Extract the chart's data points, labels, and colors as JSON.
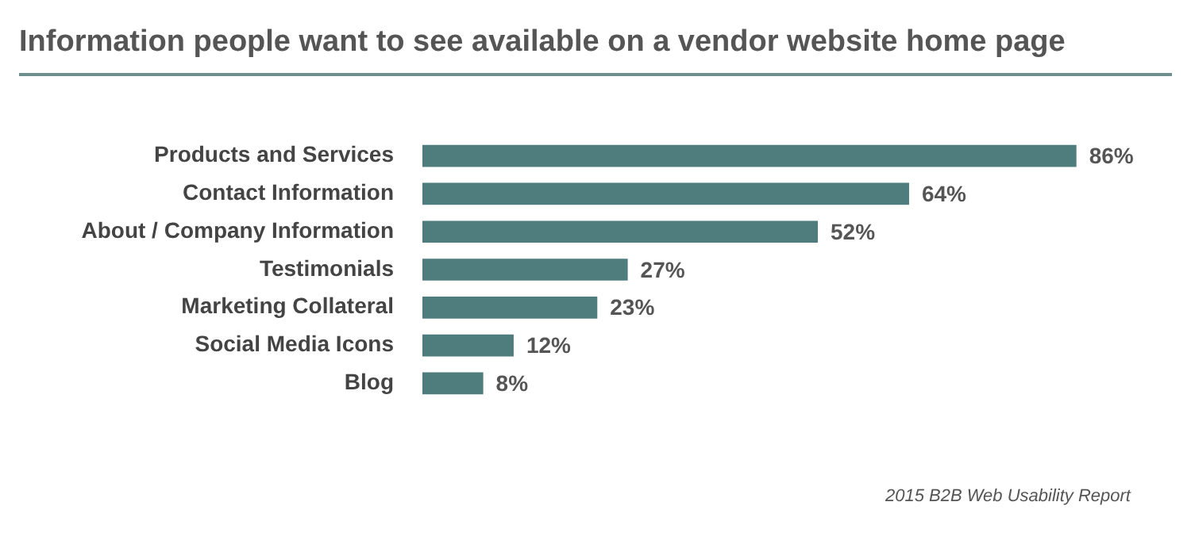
{
  "chart_data": {
    "type": "bar",
    "orientation": "horizontal",
    "title": "Information people want to see available on a vendor website home page",
    "categories": [
      "Products and Services",
      "Contact Information",
      "About / Company Information",
      "Testimonials",
      "Marketing Collateral",
      "Social Media Icons",
      "Blog"
    ],
    "values": [
      86,
      64,
      52,
      27,
      23,
      12,
      8
    ],
    "value_labels": [
      "86%",
      "64%",
      "52%",
      "27%",
      "23%",
      "12%",
      "8%"
    ],
    "color": "#4f7d7e",
    "tick_labels": "y",
    "grid": false,
    "legend": false,
    "annotations": [
      "2015 B2B Web Usability Report"
    ]
  }
}
